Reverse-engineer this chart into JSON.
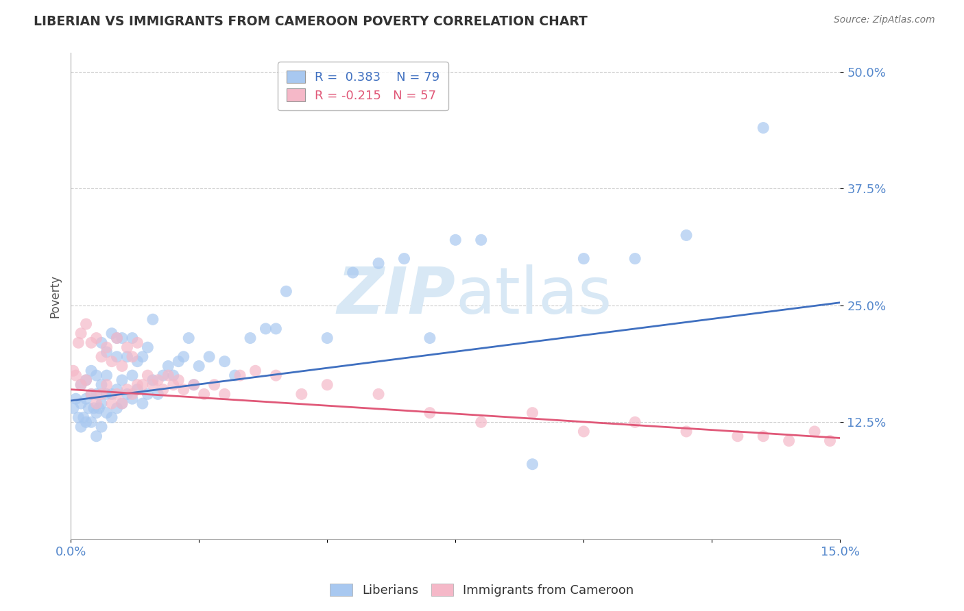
{
  "title": "LIBERIAN VS IMMIGRANTS FROM CAMEROON POVERTY CORRELATION CHART",
  "source": "Source: ZipAtlas.com",
  "ylabel": "Poverty",
  "xlim": [
    0.0,
    0.15
  ],
  "ylim": [
    0.0,
    0.52
  ],
  "xticks": [
    0.0,
    0.025,
    0.05,
    0.075,
    0.1,
    0.125,
    0.15
  ],
  "xticklabels": [
    "0.0%",
    "",
    "",
    "",
    "",
    "",
    "15.0%"
  ],
  "yticks": [
    0.125,
    0.25,
    0.375,
    0.5
  ],
  "yticklabels": [
    "12.5%",
    "25.0%",
    "37.5%",
    "50.0%"
  ],
  "blue_R": 0.383,
  "blue_N": 79,
  "pink_R": -0.215,
  "pink_N": 57,
  "blue_color": "#a8c8f0",
  "pink_color": "#f5b8c8",
  "blue_line_color": "#4070c0",
  "pink_line_color": "#e05878",
  "watermark_color": "#d8e8f5",
  "blue_scatter_x": [
    0.0005,
    0.001,
    0.0015,
    0.002,
    0.002,
    0.002,
    0.0025,
    0.003,
    0.003,
    0.003,
    0.0035,
    0.004,
    0.004,
    0.004,
    0.0045,
    0.005,
    0.005,
    0.005,
    0.005,
    0.0055,
    0.006,
    0.006,
    0.006,
    0.006,
    0.007,
    0.007,
    0.007,
    0.007,
    0.008,
    0.008,
    0.008,
    0.009,
    0.009,
    0.009,
    0.009,
    0.01,
    0.01,
    0.01,
    0.011,
    0.011,
    0.012,
    0.012,
    0.012,
    0.013,
    0.013,
    0.014,
    0.014,
    0.015,
    0.015,
    0.016,
    0.016,
    0.017,
    0.018,
    0.019,
    0.02,
    0.021,
    0.022,
    0.023,
    0.024,
    0.025,
    0.027,
    0.03,
    0.032,
    0.035,
    0.038,
    0.04,
    0.042,
    0.05,
    0.055,
    0.06,
    0.065,
    0.07,
    0.075,
    0.08,
    0.09,
    0.1,
    0.11,
    0.12,
    0.135
  ],
  "blue_scatter_y": [
    0.14,
    0.15,
    0.13,
    0.12,
    0.145,
    0.165,
    0.13,
    0.125,
    0.15,
    0.17,
    0.14,
    0.125,
    0.155,
    0.18,
    0.14,
    0.11,
    0.135,
    0.155,
    0.175,
    0.14,
    0.12,
    0.145,
    0.165,
    0.21,
    0.135,
    0.155,
    0.175,
    0.2,
    0.13,
    0.155,
    0.22,
    0.14,
    0.16,
    0.195,
    0.215,
    0.145,
    0.17,
    0.215,
    0.155,
    0.195,
    0.15,
    0.175,
    0.215,
    0.16,
    0.19,
    0.145,
    0.195,
    0.155,
    0.205,
    0.17,
    0.235,
    0.155,
    0.175,
    0.185,
    0.175,
    0.19,
    0.195,
    0.215,
    0.165,
    0.185,
    0.195,
    0.19,
    0.175,
    0.215,
    0.225,
    0.225,
    0.265,
    0.215,
    0.285,
    0.295,
    0.3,
    0.215,
    0.32,
    0.32,
    0.08,
    0.3,
    0.3,
    0.325,
    0.44
  ],
  "pink_scatter_x": [
    0.0005,
    0.001,
    0.0015,
    0.002,
    0.002,
    0.003,
    0.003,
    0.004,
    0.004,
    0.005,
    0.005,
    0.006,
    0.006,
    0.007,
    0.007,
    0.008,
    0.008,
    0.009,
    0.009,
    0.01,
    0.01,
    0.011,
    0.011,
    0.012,
    0.012,
    0.013,
    0.013,
    0.014,
    0.015,
    0.016,
    0.017,
    0.018,
    0.019,
    0.02,
    0.021,
    0.022,
    0.024,
    0.026,
    0.028,
    0.03,
    0.033,
    0.036,
    0.04,
    0.045,
    0.05,
    0.06,
    0.07,
    0.08,
    0.09,
    0.1,
    0.11,
    0.12,
    0.13,
    0.135,
    0.14,
    0.145,
    0.148
  ],
  "pink_scatter_y": [
    0.18,
    0.175,
    0.21,
    0.165,
    0.22,
    0.17,
    0.23,
    0.155,
    0.21,
    0.145,
    0.215,
    0.155,
    0.195,
    0.165,
    0.205,
    0.145,
    0.19,
    0.155,
    0.215,
    0.145,
    0.185,
    0.16,
    0.205,
    0.155,
    0.195,
    0.165,
    0.21,
    0.165,
    0.175,
    0.165,
    0.17,
    0.16,
    0.175,
    0.165,
    0.17,
    0.16,
    0.165,
    0.155,
    0.165,
    0.155,
    0.175,
    0.18,
    0.175,
    0.155,
    0.165,
    0.155,
    0.135,
    0.125,
    0.135,
    0.115,
    0.125,
    0.115,
    0.11,
    0.11,
    0.105,
    0.115,
    0.105
  ]
}
